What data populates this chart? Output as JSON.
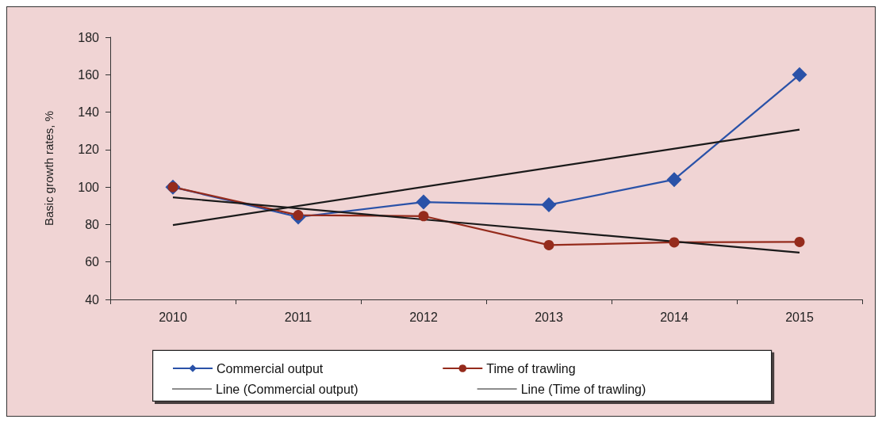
{
  "chart_data": {
    "type": "line",
    "ylabel": "Basic growth rates, %",
    "categories": [
      "2010",
      "2011",
      "2012",
      "2013",
      "2014",
      "2015"
    ],
    "series": [
      {
        "name": "Commercial output",
        "color": "#2a52a8",
        "marker": "diamond",
        "values": [
          100,
          84,
          92,
          90.5,
          104,
          160
        ]
      },
      {
        "name": "Time of trawling",
        "color": "#952b1c",
        "marker": "circle",
        "values": [
          100,
          85,
          84.5,
          69,
          70.5,
          70.7
        ]
      },
      {
        "name": "Line (Commercial output)",
        "color": "#1a1a1a",
        "marker": "none",
        "values": [
          79.7,
          null,
          null,
          null,
          null,
          130.7
        ]
      },
      {
        "name": "Line (Time of trawling)",
        "color": "#1a1a1a",
        "marker": "none",
        "values": [
          94.5,
          null,
          null,
          null,
          null,
          65
        ]
      }
    ],
    "ylim": [
      40,
      180
    ],
    "yticks": [
      40,
      60,
      80,
      100,
      120,
      140,
      160,
      180
    ],
    "grid": false,
    "legend": "bottom",
    "line_style": "solid"
  }
}
